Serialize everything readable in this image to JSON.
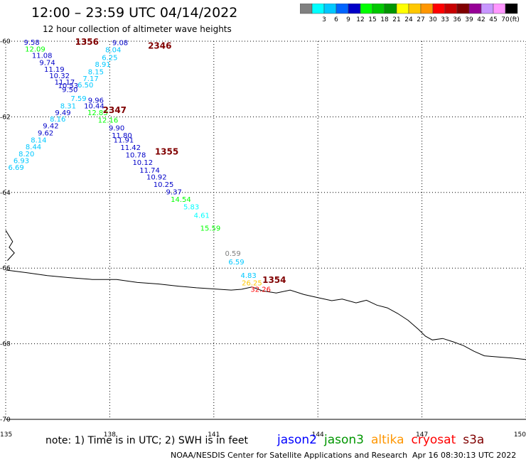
{
  "header": {
    "title": "12:00 – 23:59 UTC 04/14/2022",
    "subtitle": "12 hour collection of altimeter wave heights"
  },
  "legend": {
    "unit": "(ft)",
    "bins": [
      {
        "label": "",
        "color": "#808080"
      },
      {
        "label": "3",
        "color": "#00ffff"
      },
      {
        "label": "6",
        "color": "#00c8ff"
      },
      {
        "label": "9",
        "color": "#0064ff"
      },
      {
        "label": "12",
        "color": "#0000c8"
      },
      {
        "label": "15",
        "color": "#00ff00"
      },
      {
        "label": "18",
        "color": "#00c800"
      },
      {
        "label": "21",
        "color": "#009600"
      },
      {
        "label": "24",
        "color": "#ffff00"
      },
      {
        "label": "27",
        "color": "#ffc800"
      },
      {
        "label": "30",
        "color": "#ff9600"
      },
      {
        "label": "33",
        "color": "#ff0000"
      },
      {
        "label": "36",
        "color": "#c80000"
      },
      {
        "label": "39",
        "color": "#800000"
      },
      {
        "label": "42",
        "color": "#960096"
      },
      {
        "label": "45",
        "color": "#c896ff"
      },
      {
        "label": "70",
        "color": "#ff96ff"
      },
      {
        "label": "",
        "color": "#000000"
      }
    ]
  },
  "map": {
    "lon_range": [
      135,
      150
    ],
    "lat_range": [
      -70,
      -60
    ],
    "lon_ticks": [
      "135",
      "138",
      "141",
      "144",
      "147",
      "150"
    ],
    "lat_ticks": [
      "-60",
      "-62",
      "-64",
      "-66",
      "-68",
      "-70"
    ],
    "gridlines": true,
    "coastline_color": "#000000",
    "track_times": [
      {
        "label": "1356",
        "lon": 137.0,
        "lat": -60.0,
        "color": "#800000"
      },
      {
        "label": "2346",
        "lon": 139.1,
        "lat": -60.1,
        "color": "#800000"
      },
      {
        "label": "2347",
        "lon": 137.8,
        "lat": -61.8,
        "color": "#800000"
      },
      {
        "label": "1355",
        "lon": 139.3,
        "lat": -62.9,
        "color": "#800000"
      },
      {
        "label": "1354",
        "lon": 142.4,
        "lat": -66.3,
        "color": "#800000"
      }
    ],
    "points": [
      {
        "label": "9.58",
        "lon": 135.75,
        "lat": -60.02,
        "color": "#0000c8"
      },
      {
        "label": "12.09",
        "lon": 135.85,
        "lat": -60.2,
        "color": "#00ff00"
      },
      {
        "label": "11.08",
        "lon": 136.05,
        "lat": -60.37,
        "color": "#0000c8"
      },
      {
        "label": "9.74",
        "lon": 136.2,
        "lat": -60.55,
        "color": "#0000c8"
      },
      {
        "label": "11.19",
        "lon": 136.4,
        "lat": -60.73,
        "color": "#0000c8"
      },
      {
        "label": "10.32",
        "lon": 136.55,
        "lat": -60.9,
        "color": "#0000c8"
      },
      {
        "label": "11.17",
        "lon": 136.7,
        "lat": -61.07,
        "color": "#0000c8"
      },
      {
        "label": "10.53",
        "lon": 136.8,
        "lat": -61.17,
        "color": "#0000c8"
      },
      {
        "label": "9.50",
        "lon": 136.85,
        "lat": -61.27,
        "color": "#0000c8"
      },
      {
        "label": "9.96",
        "lon": 137.6,
        "lat": -61.55,
        "color": "#0000c8"
      },
      {
        "label": "7.59",
        "lon": 137.1,
        "lat": -61.5,
        "color": "#00c8ff"
      },
      {
        "label": "8.31",
        "lon": 136.8,
        "lat": -61.7,
        "color": "#00c8ff"
      },
      {
        "label": "9.49",
        "lon": 136.65,
        "lat": -61.88,
        "color": "#0000c8"
      },
      {
        "label": "8.16",
        "lon": 136.5,
        "lat": -62.05,
        "color": "#00c8ff"
      },
      {
        "label": "9.42",
        "lon": 136.3,
        "lat": -62.23,
        "color": "#0000c8"
      },
      {
        "label": "9.62",
        "lon": 136.15,
        "lat": -62.42,
        "color": "#0000c8"
      },
      {
        "label": "8.14",
        "lon": 135.95,
        "lat": -62.6,
        "color": "#00c8ff"
      },
      {
        "label": "8.44",
        "lon": 135.8,
        "lat": -62.78,
        "color": "#00c8ff"
      },
      {
        "label": "8.20",
        "lon": 135.6,
        "lat": -62.97,
        "color": "#00c8ff"
      },
      {
        "label": "6.93",
        "lon": 135.45,
        "lat": -63.15,
        "color": "#00c8ff"
      },
      {
        "label": "6.69",
        "lon": 135.3,
        "lat": -63.33,
        "color": "#00c8ff"
      },
      {
        "label": "9.08",
        "lon": 138.3,
        "lat": -60.03,
        "color": "#0000c8"
      },
      {
        "label": "8.04",
        "lon": 138.1,
        "lat": -60.22,
        "color": "#00c8ff"
      },
      {
        "label": "6.25",
        "lon": 138.0,
        "lat": -60.42,
        "color": "#00c8ff"
      },
      {
        "label": "8.91",
        "lon": 137.8,
        "lat": -60.6,
        "color": "#00c8ff"
      },
      {
        "label": "8.15",
        "lon": 137.6,
        "lat": -60.8,
        "color": "#00c8ff"
      },
      {
        "label": "7.17",
        "lon": 137.45,
        "lat": -60.98,
        "color": "#00c8ff"
      },
      {
        "label": "6.50",
        "lon": 137.3,
        "lat": -61.15,
        "color": "#00c8ff"
      },
      {
        "label": "10.44",
        "lon": 137.55,
        "lat": -61.7,
        "color": "#0000c8"
      },
      {
        "label": "12.83",
        "lon": 137.65,
        "lat": -61.88,
        "color": "#00ff00"
      },
      {
        "label": "12.16",
        "lon": 137.95,
        "lat": -62.08,
        "color": "#00ff00"
      },
      {
        "label": "9.90",
        "lon": 138.2,
        "lat": -62.28,
        "color": "#0000c8"
      },
      {
        "label": "11.80",
        "lon": 138.35,
        "lat": -62.48,
        "color": "#0000c8"
      },
      {
        "label": "11.91",
        "lon": 138.4,
        "lat": -62.6,
        "color": "#0000c8"
      },
      {
        "label": "11.42",
        "lon": 138.6,
        "lat": -62.8,
        "color": "#0000c8"
      },
      {
        "label": "10.78",
        "lon": 138.75,
        "lat": -63.0,
        "color": "#0000c8"
      },
      {
        "label": "10.12",
        "lon": 138.95,
        "lat": -63.2,
        "color": "#0000c8"
      },
      {
        "label": "11.74",
        "lon": 139.15,
        "lat": -63.4,
        "color": "#0000c8"
      },
      {
        "label": "10.92",
        "lon": 139.35,
        "lat": -63.58,
        "color": "#0000c8"
      },
      {
        "label": "10.25",
        "lon": 139.55,
        "lat": -63.78,
        "color": "#0000c8"
      },
      {
        "label": "9.37",
        "lon": 139.85,
        "lat": -63.98,
        "color": "#0000c8"
      },
      {
        "label": "14.54",
        "lon": 140.05,
        "lat": -64.17,
        "color": "#00ff00"
      },
      {
        "label": "5.83",
        "lon": 140.35,
        "lat": -64.37,
        "color": "#00ffff"
      },
      {
        "label": "4.61",
        "lon": 140.65,
        "lat": -64.6,
        "color": "#00ffff"
      },
      {
        "label": "15.59",
        "lon": 140.9,
        "lat": -64.93,
        "color": "#00ff00"
      },
      {
        "label": "0.59",
        "lon": 141.55,
        "lat": -65.6,
        "color": "#808080"
      },
      {
        "label": "6.59",
        "lon": 141.65,
        "lat": -65.83,
        "color": "#00c8ff"
      },
      {
        "label": "4.83",
        "lon": 142.0,
        "lat": -66.18,
        "color": "#00c8ff"
      },
      {
        "label": "26.25",
        "lon": 142.1,
        "lat": -66.38,
        "color": "#ffc800"
      },
      {
        "label": "32.26",
        "lon": 142.35,
        "lat": -66.55,
        "color": "#ff0000"
      }
    ],
    "coastline": [
      [
        135.0,
        -66.05
      ],
      [
        135.6,
        -66.12
      ],
      [
        136.2,
        -66.2
      ],
      [
        136.8,
        -66.25
      ],
      [
        137.5,
        -66.3
      ],
      [
        138.2,
        -66.3
      ],
      [
        138.8,
        -66.38
      ],
      [
        139.4,
        -66.42
      ],
      [
        140.0,
        -66.48
      ],
      [
        140.5,
        -66.52
      ],
      [
        141.0,
        -66.55
      ],
      [
        141.5,
        -66.58
      ],
      [
        141.8,
        -66.56
      ],
      [
        142.1,
        -66.5
      ],
      [
        142.4,
        -66.6
      ],
      [
        142.8,
        -66.66
      ],
      [
        143.2,
        -66.58
      ],
      [
        143.6,
        -66.7
      ],
      [
        144.0,
        -66.78
      ],
      [
        144.4,
        -66.86
      ],
      [
        144.7,
        -66.82
      ],
      [
        145.1,
        -66.92
      ],
      [
        145.4,
        -66.85
      ],
      [
        145.7,
        -66.98
      ],
      [
        146.0,
        -67.05
      ],
      [
        146.3,
        -67.2
      ],
      [
        146.6,
        -67.38
      ],
      [
        146.9,
        -67.62
      ],
      [
        147.1,
        -67.8
      ],
      [
        147.3,
        -67.9
      ],
      [
        147.6,
        -67.86
      ],
      [
        147.9,
        -67.95
      ],
      [
        148.2,
        -68.05
      ],
      [
        148.5,
        -68.2
      ],
      [
        148.8,
        -68.32
      ],
      [
        149.2,
        -68.35
      ],
      [
        149.6,
        -68.38
      ],
      [
        150.0,
        -68.42
      ]
    ],
    "coast_north": [
      [
        135.0,
        -65.0
      ],
      [
        135.1,
        -65.15
      ],
      [
        135.2,
        -65.3
      ],
      [
        135.1,
        -65.45
      ],
      [
        135.25,
        -65.6
      ],
      [
        135.05,
        -65.8
      ]
    ]
  },
  "footer": {
    "note": "note:  1) Time is in UTC;  2) SWH is in feet",
    "satellites": [
      {
        "name": "jason2",
        "color": "#0000ff"
      },
      {
        "name": "jason3",
        "color": "#009600"
      },
      {
        "name": "altika",
        "color": "#ff9600"
      },
      {
        "name": "cryosat",
        "color": "#ff0000"
      },
      {
        "name": "s3a",
        "color": "#800000"
      }
    ],
    "credit": "NOAA/NESDIS Center for Satellite Applications and Research",
    "generated": "Apr 16 08:30:13 UTC 2022"
  }
}
